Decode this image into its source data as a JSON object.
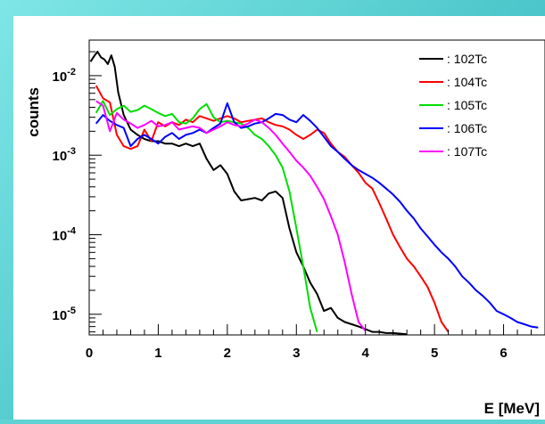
{
  "chart_data": {
    "type": "line",
    "title": "",
    "xlabel": "E [MeV]",
    "ylabel": "counts",
    "x_scale": "linear",
    "y_scale": "log",
    "xlim": [
      0,
      6.6
    ],
    "ylim": [
      5.5e-06,
      0.028
    ],
    "x_ticks": [
      "0",
      "1",
      "2",
      "3",
      "4",
      "5",
      "6"
    ],
    "y_ticks": [
      {
        "value": 0.01,
        "base": "10",
        "exp": "-2"
      },
      {
        "value": 0.001,
        "base": "10",
        "exp": "-3"
      },
      {
        "value": 0.0001,
        "base": "10",
        "exp": "-4"
      },
      {
        "value": 1e-05,
        "base": "10",
        "exp": "-5"
      }
    ],
    "legend_position": "top-right",
    "grid": false,
    "series": [
      {
        "name": ": 102Tc",
        "color": "#000000",
        "x": [
          0.02,
          0.08,
          0.12,
          0.17,
          0.22,
          0.27,
          0.32,
          0.37,
          0.42,
          0.5,
          0.6,
          0.7,
          0.8,
          0.9,
          1.0,
          1.1,
          1.2,
          1.3,
          1.4,
          1.5,
          1.6,
          1.7,
          1.8,
          1.9,
          2.0,
          2.1,
          2.2,
          2.3,
          2.4,
          2.5,
          2.6,
          2.7,
          2.8,
          2.9,
          3.0,
          3.1,
          3.2,
          3.3,
          3.4,
          3.5,
          3.6,
          3.7,
          3.8,
          3.9,
          4.0,
          4.1,
          4.2,
          4.3,
          4.4,
          4.6
        ],
        "y": [
          0.015,
          0.018,
          0.02,
          0.017,
          0.016,
          0.014,
          0.018,
          0.013,
          0.0062,
          0.0032,
          0.0021,
          0.0018,
          0.0016,
          0.0015,
          0.0015,
          0.0014,
          0.0014,
          0.0013,
          0.0014,
          0.0013,
          0.0014,
          0.0009,
          0.00065,
          0.00075,
          0.00058,
          0.00035,
          0.00027,
          0.00028,
          0.00029,
          0.00027,
          0.00033,
          0.00035,
          0.00029,
          0.00012,
          6e-05,
          4e-05,
          2.5e-05,
          1.8e-05,
          1.1e-05,
          1.2e-05,
          9e-06,
          8e-06,
          7.5e-06,
          7e-06,
          6.5e-06,
          6e-06,
          6e-06,
          5.8e-06,
          5.8e-06,
          5.6e-06
        ]
      },
      {
        "name": ": 104Tc",
        "color": "#ff0000",
        "x": [
          0.1,
          0.2,
          0.3,
          0.4,
          0.5,
          0.6,
          0.7,
          0.8,
          0.9,
          1.0,
          1.1,
          1.2,
          1.3,
          1.4,
          1.5,
          1.6,
          1.7,
          1.8,
          1.9,
          2.0,
          2.1,
          2.2,
          2.3,
          2.4,
          2.5,
          2.6,
          2.7,
          2.8,
          2.9,
          3.0,
          3.1,
          3.2,
          3.3,
          3.4,
          3.5,
          3.6,
          3.7,
          3.8,
          3.9,
          4.0,
          4.1,
          4.2,
          4.3,
          4.4,
          4.5,
          4.6,
          4.7,
          4.8,
          4.9,
          5.0,
          5.1,
          5.2
        ],
        "y": [
          0.0075,
          0.0052,
          0.0046,
          0.0018,
          0.0013,
          0.0012,
          0.0013,
          0.0021,
          0.0015,
          0.0026,
          0.0023,
          0.0026,
          0.0024,
          0.0028,
          0.0026,
          0.0031,
          0.0029,
          0.0027,
          0.0029,
          0.0031,
          0.0029,
          0.0026,
          0.0027,
          0.0028,
          0.0029,
          0.0026,
          0.0024,
          0.0023,
          0.0021,
          0.0018,
          0.0016,
          0.0018,
          0.0021,
          0.0019,
          0.0014,
          0.0011,
          0.00095,
          0.00075,
          0.0006,
          0.00045,
          0.00038,
          0.00025,
          0.00016,
          0.0001,
          7e-05,
          5e-05,
          4e-05,
          3e-05,
          2.2e-05,
          1.4e-05,
          8e-06,
          6e-06
        ]
      },
      {
        "name": ": 105Tc",
        "color": "#00dd00",
        "x": [
          0.1,
          0.2,
          0.3,
          0.4,
          0.5,
          0.6,
          0.7,
          0.8,
          0.9,
          1.0,
          1.1,
          1.2,
          1.3,
          1.4,
          1.5,
          1.6,
          1.7,
          1.8,
          1.9,
          2.0,
          2.1,
          2.2,
          2.3,
          2.4,
          2.5,
          2.6,
          2.7,
          2.8,
          2.9,
          3.0,
          3.1,
          3.2,
          3.3
        ],
        "y": [
          0.0034,
          0.0048,
          0.0032,
          0.0038,
          0.0042,
          0.0035,
          0.0037,
          0.0042,
          0.0038,
          0.0034,
          0.0031,
          0.0033,
          0.0026,
          0.0025,
          0.0029,
          0.0038,
          0.0044,
          0.003,
          0.0026,
          0.0027,
          0.0026,
          0.0025,
          0.0022,
          0.0018,
          0.0016,
          0.0013,
          0.001,
          0.0007,
          0.00035,
          0.00012,
          4e-05,
          1.2e-05,
          6e-06
        ]
      },
      {
        "name": ": 106Tc",
        "color": "#0000ff",
        "x": [
          0.1,
          0.2,
          0.3,
          0.4,
          0.5,
          0.6,
          0.7,
          0.8,
          0.9,
          1.0,
          1.1,
          1.2,
          1.3,
          1.4,
          1.5,
          1.6,
          1.7,
          1.8,
          1.9,
          2.0,
          2.1,
          2.2,
          2.3,
          2.4,
          2.5,
          2.6,
          2.7,
          2.8,
          2.9,
          3.0,
          3.1,
          3.2,
          3.3,
          3.4,
          3.5,
          3.6,
          3.7,
          3.8,
          3.9,
          4.0,
          4.1,
          4.2,
          4.3,
          4.4,
          4.5,
          4.6,
          4.7,
          4.8,
          4.9,
          5.0,
          5.1,
          5.2,
          5.3,
          5.4,
          5.5,
          5.6,
          5.7,
          5.8,
          5.9,
          6.0,
          6.1,
          6.2,
          6.3,
          6.4,
          6.5
        ],
        "y": [
          0.0025,
          0.0032,
          0.0027,
          0.0024,
          0.0022,
          0.0013,
          0.0016,
          0.0018,
          0.0016,
          0.0014,
          0.0017,
          0.0019,
          0.0016,
          0.0018,
          0.0019,
          0.0021,
          0.0019,
          0.0022,
          0.0025,
          0.0045,
          0.0026,
          0.0022,
          0.0023,
          0.0025,
          0.0026,
          0.0029,
          0.0033,
          0.0032,
          0.0028,
          0.0026,
          0.0032,
          0.0027,
          0.0022,
          0.0017,
          0.0013,
          0.0011,
          0.0009,
          0.00075,
          0.00065,
          0.00058,
          0.00052,
          0.00045,
          0.00038,
          0.00032,
          0.00026,
          0.0002,
          0.00016,
          0.00012,
          9.5e-05,
          7.5e-05,
          6e-05,
          5e-05,
          4e-05,
          3e-05,
          2.5e-05,
          2e-05,
          1.7e-05,
          1.4e-05,
          1.1e-05,
          1e-05,
          9e-06,
          8e-06,
          7.5e-06,
          7e-06,
          6.8e-06
        ]
      },
      {
        "name": ": 107Tc",
        "color": "#ff00ff",
        "x": [
          0.1,
          0.2,
          0.3,
          0.4,
          0.5,
          0.6,
          0.7,
          0.8,
          0.9,
          1.0,
          1.1,
          1.2,
          1.3,
          1.4,
          1.5,
          1.6,
          1.7,
          1.8,
          1.9,
          2.0,
          2.1,
          2.2,
          2.3,
          2.4,
          2.5,
          2.6,
          2.7,
          2.8,
          2.9,
          3.0,
          3.1,
          3.2,
          3.3,
          3.4,
          3.5,
          3.6,
          3.7,
          3.8,
          3.9,
          4.0
        ],
        "y": [
          0.0048,
          0.0042,
          0.002,
          0.0034,
          0.0028,
          0.0025,
          0.0022,
          0.0024,
          0.0027,
          0.0023,
          0.0024,
          0.0026,
          0.0021,
          0.0022,
          0.0023,
          0.0022,
          0.0019,
          0.0021,
          0.0023,
          0.0026,
          0.0024,
          0.0023,
          0.0025,
          0.0028,
          0.0026,
          0.0022,
          0.0018,
          0.0014,
          0.0011,
          0.00085,
          0.0007,
          0.00055,
          0.0004,
          0.00028,
          0.00017,
          0.0001,
          4.5e-05,
          1.8e-05,
          8e-06,
          6.2e-06
        ]
      }
    ]
  }
}
